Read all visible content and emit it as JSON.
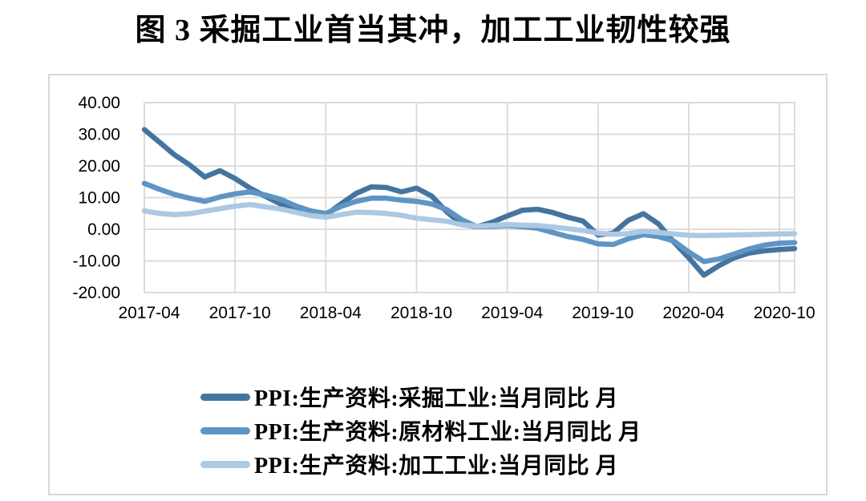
{
  "figure": {
    "title": "图 3  采掘工业首当其冲，加工工业韧性较强"
  },
  "chart_data": {
    "type": "line",
    "title": "图 3  采掘工业首当其冲，加工工业韧性较强",
    "xlabel": "",
    "ylabel": "",
    "ylim": [
      -20,
      40
    ],
    "y_ticks": [
      40,
      30,
      20,
      10,
      0,
      -10,
      -20
    ],
    "y_tick_labels": [
      "40.00",
      "30.00",
      "20.00",
      "10.00",
      "0.00",
      "-10.00",
      "-20.00"
    ],
    "x_axis_tick_labels": [
      "2017-04",
      "2017-10",
      "2018-04",
      "2018-10",
      "2019-04",
      "2019-10",
      "2020-04",
      "2020-10"
    ],
    "grid": "both",
    "gridline_color": "#d9d9d9",
    "legend_position": "bottom-left-inside",
    "x": [
      "2017-04",
      "2017-05",
      "2017-06",
      "2017-07",
      "2017-08",
      "2017-09",
      "2017-10",
      "2017-11",
      "2017-12",
      "2018-01",
      "2018-02",
      "2018-03",
      "2018-04",
      "2018-05",
      "2018-06",
      "2018-07",
      "2018-08",
      "2018-09",
      "2018-10",
      "2018-11",
      "2018-12",
      "2019-01",
      "2019-02",
      "2019-03",
      "2019-04",
      "2019-05",
      "2019-06",
      "2019-07",
      "2019-08",
      "2019-09",
      "2019-10",
      "2019-11",
      "2019-12",
      "2020-01",
      "2020-02",
      "2020-03",
      "2020-04",
      "2020-05",
      "2020-06",
      "2020-07",
      "2020-08",
      "2020-09",
      "2020-10",
      "2020-11"
    ],
    "series": [
      {
        "name": "PPI:生产资料:采掘工业:当月同比 月",
        "color": "#45759f",
        "values": [
          31.5,
          27.5,
          23.5,
          20.3,
          16.5,
          18.5,
          16.0,
          13.0,
          10.4,
          8.0,
          5.9,
          4.8,
          4.5,
          8.0,
          11.3,
          13.4,
          13.2,
          11.8,
          13.0,
          10.5,
          5.5,
          1.5,
          0.8,
          2.2,
          4.2,
          6.0,
          6.3,
          5.3,
          3.8,
          2.6,
          -1.8,
          -1.2,
          2.8,
          4.9,
          1.7,
          -4.0,
          -9.0,
          -14.5,
          -11.5,
          -9.0,
          -7.5,
          -6.8,
          -6.4,
          -6.1
        ]
      },
      {
        "name": "PPI:生产资料:原材料工业:当月同比 月",
        "color": "#5e95c5",
        "values": [
          14.5,
          12.6,
          11.0,
          9.8,
          8.8,
          10.2,
          11.2,
          11.8,
          10.8,
          9.5,
          7.4,
          5.8,
          5.0,
          7.2,
          8.8,
          9.8,
          9.8,
          9.2,
          8.8,
          8.0,
          6.2,
          3.0,
          0.8,
          0.9,
          1.2,
          0.8,
          0.3,
          -1.0,
          -2.3,
          -3.2,
          -4.6,
          -4.8,
          -3.0,
          -1.7,
          -2.3,
          -3.7,
          -7.2,
          -10.2,
          -9.4,
          -7.8,
          -6.2,
          -5.0,
          -4.4,
          -4.2
        ]
      },
      {
        "name": "PPI:生产资料:加工工业:当月同比 月",
        "color": "#adc8e2",
        "values": [
          5.8,
          5.0,
          4.6,
          4.9,
          5.7,
          6.5,
          7.3,
          7.8,
          7.1,
          6.4,
          5.4,
          4.3,
          3.8,
          4.6,
          5.4,
          5.3,
          5.0,
          4.4,
          3.5,
          3.0,
          2.5,
          1.4,
          1.0,
          1.2,
          1.5,
          1.3,
          1.2,
          0.7,
          0.2,
          -0.4,
          -1.2,
          -1.6,
          -1.4,
          -0.6,
          -1.0,
          -1.5,
          -1.9,
          -2.0,
          -1.9,
          -1.8,
          -1.7,
          -1.6,
          -1.5,
          -1.4
        ]
      }
    ]
  }
}
